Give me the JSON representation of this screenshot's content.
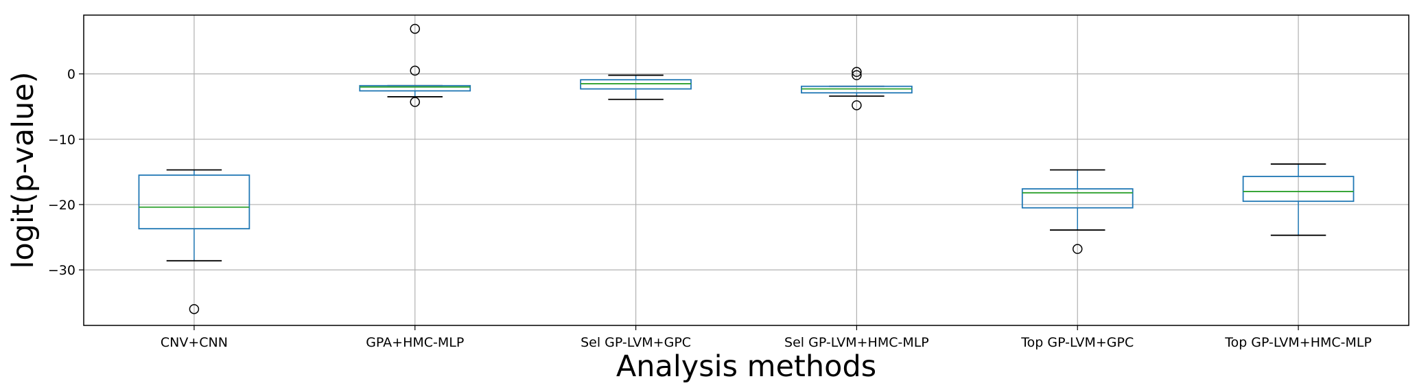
{
  "chart_data": {
    "type": "boxplot",
    "xlabel": "Analysis methods",
    "ylabel": "logit(p-value)",
    "ylim": [
      -38.5,
      9.0
    ],
    "yticks": [
      0,
      -10,
      -20,
      -30
    ],
    "grid": true,
    "colors": {
      "box": "#1f77b4",
      "median": "#2ca02c",
      "whisker_cap": "#000000",
      "flier": "#000000",
      "grid": "#b0b0b0"
    },
    "categories": [
      "CNV+CNN",
      "GPA+HMC-MLP",
      "Sel GP-LVM+GPC",
      "Sel GP-LVM+HMC-MLP",
      "Top GP-LVM+GPC",
      "Top GP-LVM+HMC-MLP"
    ],
    "boxes": [
      {
        "q1": -23.7,
        "median": -20.4,
        "q3": -15.5,
        "whisker_low": -28.6,
        "whisker_high": -14.7,
        "fliers": [
          -36.0
        ]
      },
      {
        "q1": -2.6,
        "median": -2.0,
        "q3": -1.8,
        "whisker_low": -3.5,
        "whisker_high": -1.8,
        "fliers": [
          6.9,
          0.5,
          -4.3
        ]
      },
      {
        "q1": -2.3,
        "median": -1.5,
        "q3": -0.9,
        "whisker_low": -3.9,
        "whisker_high": -0.2,
        "fliers": []
      },
      {
        "q1": -2.9,
        "median": -2.3,
        "q3": -1.9,
        "whisker_low": -3.4,
        "whisker_high": -1.9,
        "fliers": [
          0.3,
          -0.2,
          -4.8
        ]
      },
      {
        "q1": -20.5,
        "median": -18.2,
        "q3": -17.6,
        "whisker_low": -23.9,
        "whisker_high": -14.7,
        "fliers": [
          -26.8
        ]
      },
      {
        "q1": -19.5,
        "median": -18.0,
        "q3": -15.7,
        "whisker_low": -24.7,
        "whisker_high": -13.8,
        "fliers": []
      }
    ]
  }
}
